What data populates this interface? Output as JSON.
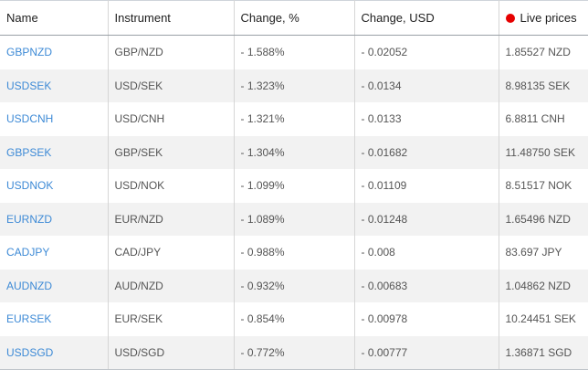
{
  "table": {
    "header": [
      "Name",
      "Instrument",
      "Change, %",
      "Change, USD",
      "Live prices"
    ],
    "rows": [
      [
        "GBPNZD",
        "GBP/NZD",
        "- 1.588%",
        "- 0.02052",
        "1.85527 NZD"
      ],
      [
        "USDSEK",
        "USD/SEK",
        "- 1.323%",
        "- 0.0134",
        "8.98135 SEK"
      ],
      [
        "USDCNH",
        "USD/CNH",
        "- 1.321%",
        "- 0.0133",
        "6.8811 CNH"
      ],
      [
        "GBPSEK",
        "GBP/SEK",
        "- 1.304%",
        "- 0.01682",
        "11.48750 SEK"
      ],
      [
        "USDNOK",
        "USD/NOK",
        "- 1.099%",
        "- 0.01109",
        "8.51517 NOK"
      ],
      [
        "EURNZD",
        "EUR/NZD",
        "- 1.089%",
        "- 0.01248",
        "1.65496 NZD"
      ],
      [
        "CADJPY",
        "CAD/JPY",
        "- 0.988%",
        "- 0.008",
        "83.697 JPY"
      ],
      [
        "AUDNZD",
        "AUD/NZD",
        "- 0.932%",
        "- 0.00683",
        "1.04862 NZD"
      ],
      [
        "EURSEK",
        "EUR/SEK",
        "- 0.854%",
        "- 0.00978",
        "10.24451 SEK"
      ],
      [
        "USDSGD",
        "USD/SGD",
        "- 0.772%",
        "- 0.00777",
        "1.36871 SGD"
      ]
    ]
  }
}
